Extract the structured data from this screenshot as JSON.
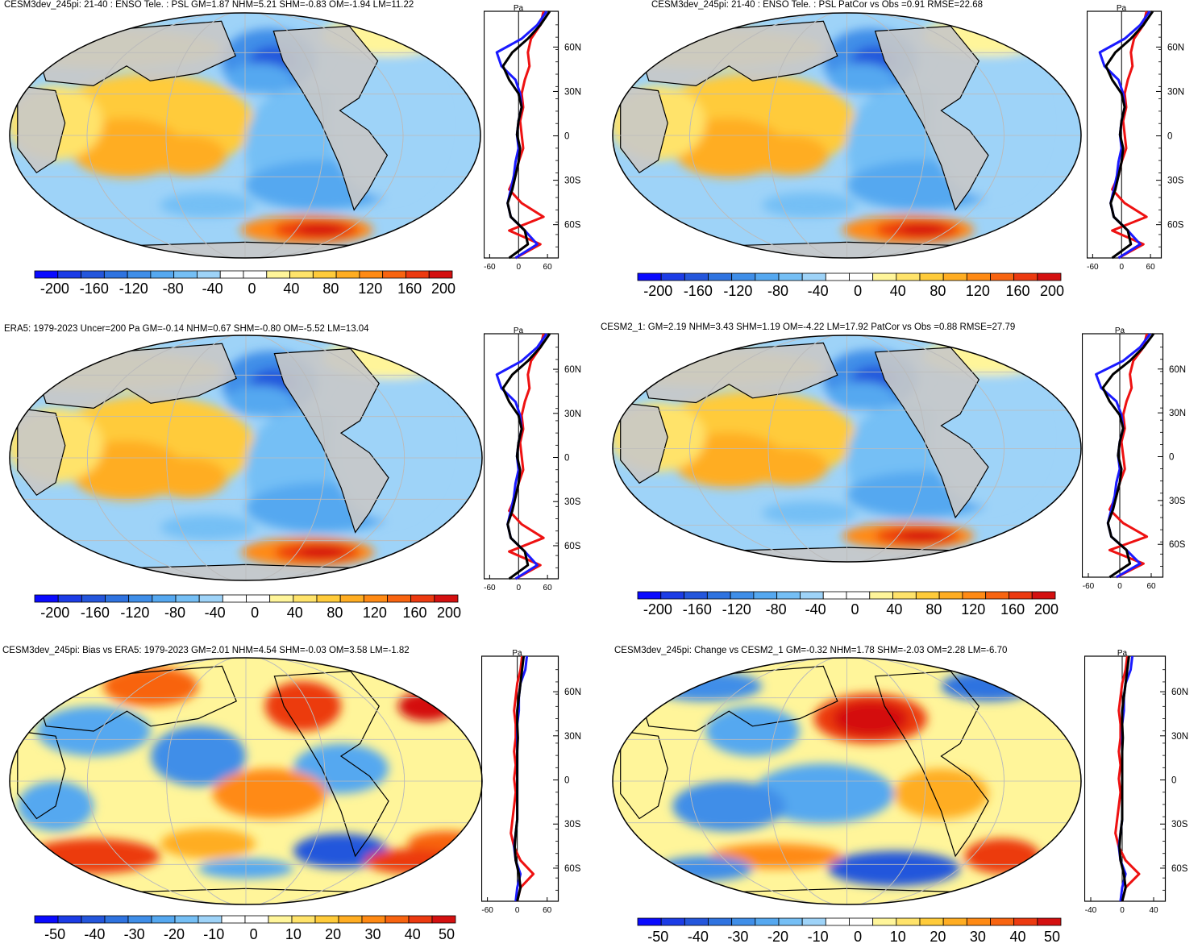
{
  "panels": [
    {
      "id": "p1",
      "title": "CESM3dev_245pi: 21-40 : ENSO Tele. : PSL GM=1.87 NHM=5.21 SHM=-0.83 OM=-1.94 LM=11.22",
      "colorbar_labels": [
        "-200",
        "-160",
        "-120",
        "-80",
        "-40",
        "0",
        "40",
        "80",
        "120",
        "160",
        "200"
      ],
      "profile_x_ticks": [
        "-60",
        "0",
        "60"
      ],
      "profile_y_ticks": [
        "60N",
        "30N",
        "0",
        "30S",
        "60S"
      ],
      "profile_unit": "Pa"
    },
    {
      "id": "p2",
      "title": "CESM3dev_245pi: 21-40 : ENSO Tele. : PSL PatCor vs Obs =0.91 RMSE=22.68",
      "colorbar_labels": [
        "-200",
        "-160",
        "-120",
        "-80",
        "-40",
        "0",
        "40",
        "80",
        "120",
        "160",
        "200"
      ],
      "profile_x_ticks": [
        "-60",
        "0",
        "60"
      ],
      "profile_y_ticks": [
        "60N",
        "30N",
        "0",
        "30S",
        "60S"
      ],
      "profile_unit": "Pa"
    },
    {
      "id": "p3",
      "title": "ERA5: 1979-2023 Uncer=200 Pa GM=-0.14 NHM=0.67 SHM=-0.80 OM=-5.52 LM=13.04",
      "colorbar_labels": [
        "-200",
        "-160",
        "-120",
        "-80",
        "-40",
        "0",
        "40",
        "80",
        "120",
        "160",
        "200"
      ],
      "profile_x_ticks": [
        "-60",
        "0",
        "60"
      ],
      "profile_y_ticks": [
        "60N",
        "30N",
        "0",
        "30S",
        "60S"
      ],
      "profile_unit": "Pa"
    },
    {
      "id": "p4",
      "title": "CESM2_1: GM=2.19 NHM=3.43 SHM=1.19 OM=-4.22 LM=17.92 PatCor vs Obs =0.88 RMSE=27.79",
      "colorbar_labels": [
        "-200",
        "-160",
        "-120",
        "-80",
        "-40",
        "0",
        "40",
        "80",
        "120",
        "160",
        "200"
      ],
      "profile_x_ticks": [
        "-60",
        "0",
        "60"
      ],
      "profile_y_ticks": [
        "60N",
        "30N",
        "0",
        "30S",
        "60S"
      ],
      "profile_unit": "Pa"
    },
    {
      "id": "p5",
      "title": "CESM3dev_245pi: Bias vs ERA5: 1979-2023 GM=2.01 NHM=4.54 SHM=-0.03 OM=3.58 LM=-1.82",
      "colorbar_labels": [
        "-50",
        "-40",
        "-30",
        "-20",
        "-10",
        "0",
        "10",
        "20",
        "30",
        "40",
        "50"
      ],
      "profile_x_ticks": [
        "-60",
        "0",
        "60"
      ],
      "profile_y_ticks": [
        "60N",
        "30N",
        "0",
        "30S",
        "60S"
      ],
      "profile_unit": "Pa"
    },
    {
      "id": "p6",
      "title": "CESM3dev_245pi: Change vs CESM2_1 GM=-0.32 NHM=1.78 SHM=-2.03 OM=2.28 LM=-6.70",
      "colorbar_labels": [
        "-50",
        "-40",
        "-30",
        "-20",
        "-10",
        "0",
        "10",
        "20",
        "30",
        "40",
        "50"
      ],
      "profile_x_ticks": [
        "-40",
        "0",
        "40"
      ],
      "profile_y_ticks": [
        "60N",
        "30N",
        "0",
        "30S",
        "60S"
      ],
      "profile_unit": "Pa"
    }
  ],
  "colors": {
    "palette": [
      "#0a0aff",
      "#1c3ce6",
      "#2456dc",
      "#2f73e0",
      "#3f8ee8",
      "#55a8f0",
      "#75bff5",
      "#9ed3f8",
      "#ffffff",
      "#ffffff",
      "#fff59a",
      "#ffe36a",
      "#ffcb3a",
      "#ffad22",
      "#ff8a14",
      "#f86410",
      "#ec3a10",
      "#d41010"
    ],
    "land": "#c8c8c8",
    "blue_line": "#1a1aff",
    "red_line": "#ee1111",
    "black_line": "#000000"
  }
}
